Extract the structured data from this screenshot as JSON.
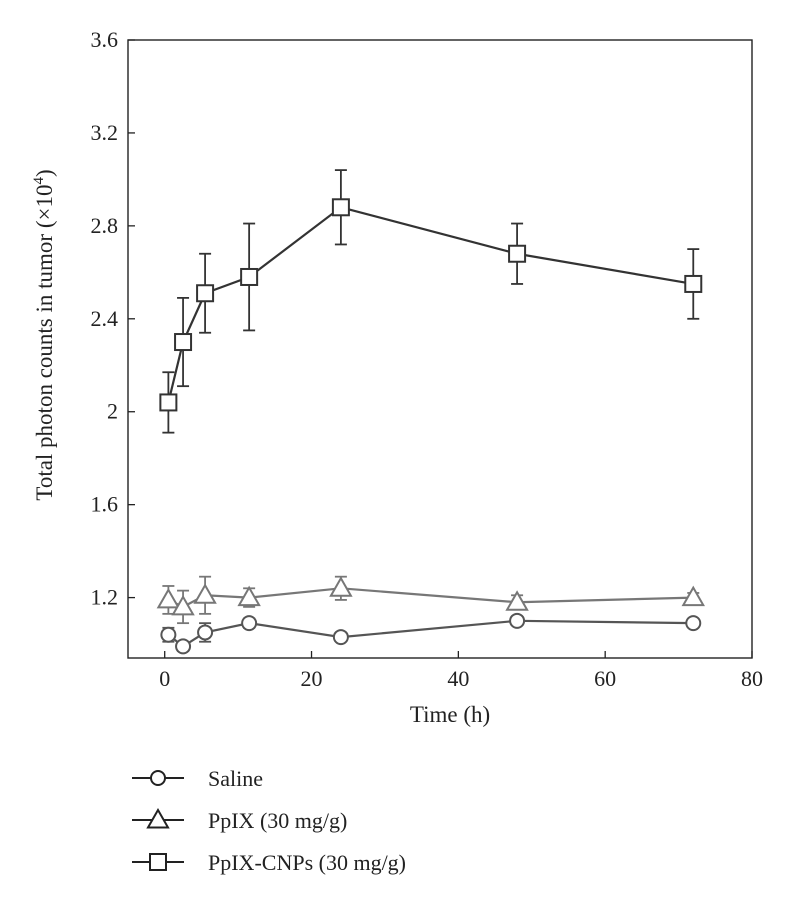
{
  "chart_data": {
    "type": "line",
    "title": "",
    "xlabel": "Time (h)",
    "ylabel": "Total photon counts in tumor (×10",
    "ylabel_exp": "4",
    "ylabel_close": ")",
    "xlim": [
      -5,
      80
    ],
    "ylim": [
      0.94,
      3.6
    ],
    "xticks": [
      0,
      20,
      40,
      60,
      80
    ],
    "xtick_labels": [
      "0",
      "20",
      "40",
      "60",
      "80"
    ],
    "yticks": [
      1.2,
      1.6,
      2.0,
      2.4,
      2.8,
      3.2,
      3.6
    ],
    "ytick_labels": [
      "1.2",
      "1.6",
      "2",
      "2.4",
      "2.8",
      "3.2",
      "3.6"
    ],
    "grid": false,
    "legend_position": "below-left",
    "series": [
      {
        "name": "Saline",
        "marker": "circle",
        "color": "#555555",
        "x": [
          0.5,
          2.5,
          5.5,
          11.5,
          24,
          48,
          72
        ],
        "y": [
          1.04,
          0.99,
          1.05,
          1.09,
          1.03,
          1.1,
          1.09
        ],
        "err": [
          0.03,
          0.02,
          0.04,
          0.02,
          0.01,
          0.01,
          0.01
        ]
      },
      {
        "name": "PpIX (30 mg/g)",
        "marker": "triangle",
        "color": "#777777",
        "x": [
          0.5,
          2.5,
          5.5,
          11.5,
          24,
          48,
          72
        ],
        "y": [
          1.19,
          1.16,
          1.21,
          1.2,
          1.24,
          1.18,
          1.2
        ],
        "err": [
          0.06,
          0.07,
          0.08,
          0.04,
          0.05,
          0.03,
          0.02
        ]
      },
      {
        "name": "PpIX-CNPs (30 mg/g)",
        "marker": "square",
        "color": "#333333",
        "x": [
          0.5,
          2.5,
          5.5,
          11.5,
          24,
          48,
          72
        ],
        "y": [
          2.04,
          2.3,
          2.51,
          2.58,
          2.88,
          2.68,
          2.55
        ],
        "err": [
          0.13,
          0.19,
          0.17,
          0.23,
          0.16,
          0.13,
          0.15
        ]
      }
    ]
  }
}
